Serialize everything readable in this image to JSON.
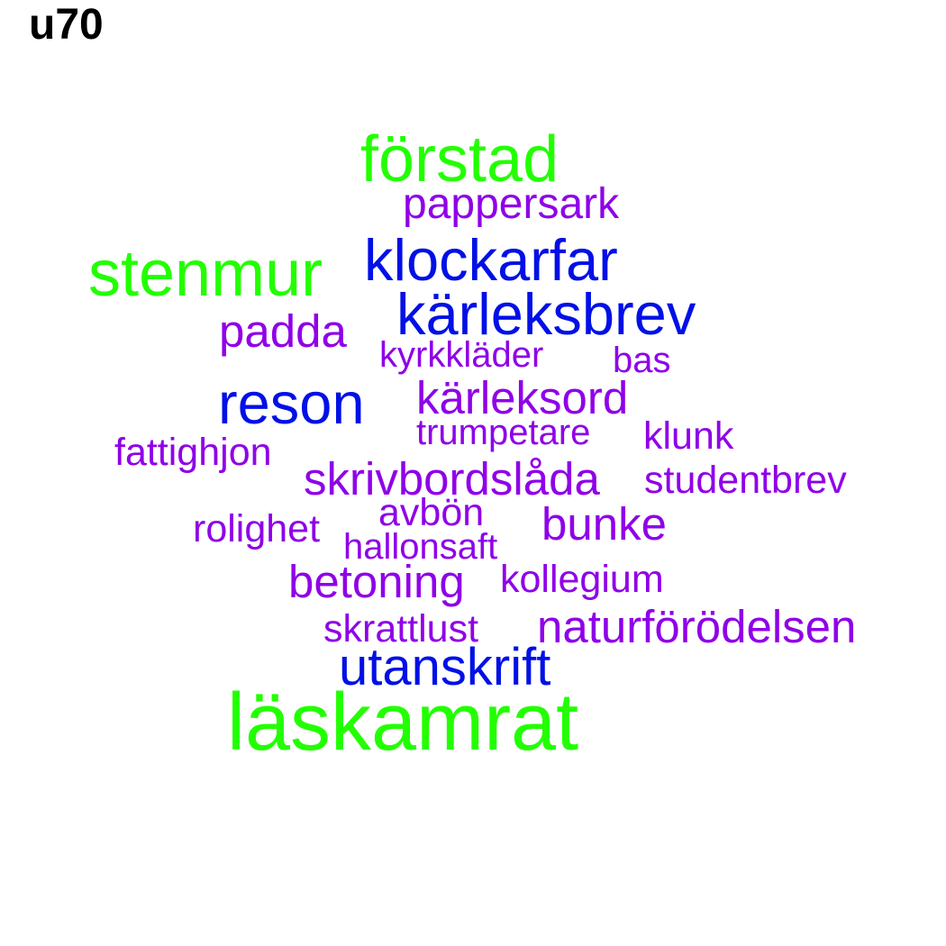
{
  "title": "u70",
  "colors": {
    "green": "#22ff00",
    "blue": "#0010e6",
    "purple": "#8f00e8",
    "title": "#000000",
    "background": "#ffffff"
  },
  "words": [
    {
      "text": "förstad",
      "color": "#22ff00"
    },
    {
      "text": "pappersark",
      "color": "#8f00e8"
    },
    {
      "text": "stenmur",
      "color": "#22ff00"
    },
    {
      "text": "klockarfar",
      "color": "#0010e6"
    },
    {
      "text": "kärleksbrev",
      "color": "#0010e6"
    },
    {
      "text": "padda",
      "color": "#8f00e8"
    },
    {
      "text": "kyrkkläder",
      "color": "#8f00e8"
    },
    {
      "text": "bas",
      "color": "#8f00e8"
    },
    {
      "text": "reson",
      "color": "#0010e6"
    },
    {
      "text": "kärleksord",
      "color": "#8f00e8"
    },
    {
      "text": "trumpetare",
      "color": "#8f00e8"
    },
    {
      "text": "klunk",
      "color": "#8f00e8"
    },
    {
      "text": "fattighjon",
      "color": "#8f00e8"
    },
    {
      "text": "skrivbordslåda",
      "color": "#8f00e8"
    },
    {
      "text": "studentbrev",
      "color": "#8f00e8"
    },
    {
      "text": "avbön",
      "color": "#8f00e8"
    },
    {
      "text": "rolighet",
      "color": "#8f00e8"
    },
    {
      "text": "bunke",
      "color": "#8f00e8"
    },
    {
      "text": "hallonsaft",
      "color": "#8f00e8"
    },
    {
      "text": "betoning",
      "color": "#8f00e8"
    },
    {
      "text": "kollegium",
      "color": "#8f00e8"
    },
    {
      "text": "skrattlust",
      "color": "#8f00e8"
    },
    {
      "text": "naturförödelsen",
      "color": "#8f00e8"
    },
    {
      "text": "utanskrift",
      "color": "#0010e6"
    },
    {
      "text": "läskamrat",
      "color": "#22ff00"
    }
  ]
}
